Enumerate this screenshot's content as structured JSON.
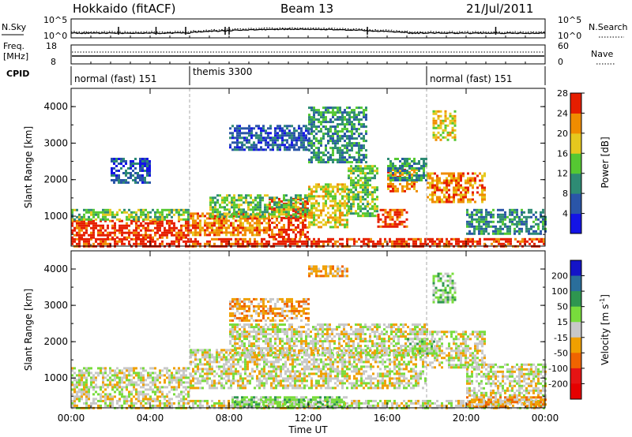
{
  "header": {
    "station": "Hokkaido (fitACF)",
    "beam": "Beam 13",
    "date": "21/Jul/2011"
  },
  "noise_panel": {
    "left_label": "N.Sky",
    "right_label": "N.Search",
    "y_ticks_left": [
      "10^5",
      "10^0"
    ],
    "y_ticks_right": [
      "10^5",
      "10^0"
    ]
  },
  "freq_panel": {
    "left_label_1": "Freq.",
    "left_label_2": "[MHz]",
    "right_label": "Nave",
    "y_ticks_left": [
      "18",
      "8"
    ],
    "y_ticks_right": [
      "60",
      "0"
    ]
  },
  "cpid_panel": {
    "label": "CPID",
    "segments": [
      {
        "name": "normal (fast) 151",
        "start_hour": 0,
        "end_hour": 6
      },
      {
        "name": "themis 3300",
        "start_hour": 6,
        "end_hour": 18
      },
      {
        "name": "normal (fast) 151",
        "start_hour": 18,
        "end_hour": 24
      }
    ]
  },
  "chart_data": [
    {
      "type": "heatmap",
      "title": "Power",
      "xlabel": "",
      "ylabel": "Slant Range [km]",
      "xlim_hours": [
        0,
        24
      ],
      "ylim": [
        180,
        4500
      ],
      "x_tick_labels": [
        "00:00",
        "04:00",
        "08:00",
        "12:00",
        "16:00",
        "20:00",
        "00:00"
      ],
      "y_tick_labels": [
        "1000",
        "2000",
        "3000",
        "4000"
      ],
      "colorbar": {
        "label": "Power [dB]",
        "ticks": [
          "4",
          "8",
          "12",
          "16",
          "20",
          "24",
          "28"
        ],
        "colors": [
          "#1414e6",
          "#2a55a8",
          "#2e8b74",
          "#55c832",
          "#e6c81e",
          "#f08c00",
          "#e61e00"
        ]
      },
      "regions": [
        {
          "t0": 0.0,
          "t1": 24.0,
          "r0": 200,
          "r1": 400,
          "level": 6
        },
        {
          "t0": 0.0,
          "t1": 6.0,
          "r0": 400,
          "r1": 900,
          "level": 6
        },
        {
          "t0": 0.0,
          "t1": 6.0,
          "r0": 900,
          "r1": 1200,
          "level": 3
        },
        {
          "t0": 6.0,
          "t1": 10.0,
          "r0": 500,
          "r1": 1100,
          "level": 5
        },
        {
          "t0": 10.0,
          "t1": 12.0,
          "r0": 400,
          "r1": 1500,
          "level": 6
        },
        {
          "t0": 7.0,
          "t1": 12.0,
          "r0": 1000,
          "r1": 1600,
          "level": 3
        },
        {
          "t0": 12.0,
          "t1": 14.0,
          "r0": 700,
          "r1": 1900,
          "level": 4
        },
        {
          "t0": 14.0,
          "t1": 15.5,
          "r0": 1000,
          "r1": 2400,
          "level": 3
        },
        {
          "t0": 15.5,
          "t1": 17.0,
          "r0": 700,
          "r1": 1200,
          "level": 6
        },
        {
          "t0": 16.0,
          "t1": 17.5,
          "r0": 1700,
          "r1": 2300,
          "level": 5
        },
        {
          "t0": 18.0,
          "t1": 21.0,
          "r0": 1400,
          "r1": 2200,
          "level": 5
        },
        {
          "t0": 20.0,
          "t1": 24.0,
          "r0": 500,
          "r1": 1200,
          "level": 2
        },
        {
          "t0": 18.3,
          "t1": 19.5,
          "r0": 3100,
          "r1": 3900,
          "level": 4
        },
        {
          "t0": 8.0,
          "t1": 12.0,
          "r0": 2800,
          "r1": 3500,
          "level": 1
        },
        {
          "t0": 12.0,
          "t1": 15.0,
          "r0": 2500,
          "r1": 4000,
          "level": 2
        },
        {
          "t0": 2.0,
          "t1": 4.0,
          "r0": 1900,
          "r1": 2600,
          "level": 1
        },
        {
          "t0": 16.0,
          "t1": 18.0,
          "r0": 2000,
          "r1": 2600,
          "level": 2
        }
      ]
    },
    {
      "type": "heatmap",
      "title": "Velocity",
      "xlabel": "Time UT",
      "ylabel": "Slant Range [km]",
      "xlim_hours": [
        0,
        24
      ],
      "ylim": [
        180,
        4500
      ],
      "x_tick_labels": [
        "00:00",
        "04:00",
        "08:00",
        "12:00",
        "16:00",
        "20:00",
        "00:00"
      ],
      "y_tick_labels": [
        "1000",
        "2000",
        "3000",
        "4000"
      ],
      "colorbar": {
        "label": "Velocity [m s^-1]",
        "ticks": [
          "200",
          "100",
          "50",
          "15",
          "-15",
          "-50",
          "-100",
          "-200"
        ],
        "colors": [
          "#1414c8",
          "#2a6e9b",
          "#2e9650",
          "#78dc3c",
          "#c8c8c8",
          "#f0a000",
          "#f06400",
          "#e61414",
          "#e60000"
        ]
      },
      "regions": [
        {
          "t0": 0.0,
          "t1": 24.0,
          "r0": 200,
          "r1": 400,
          "level": 4
        },
        {
          "t0": 0.0,
          "t1": 6.0,
          "r0": 400,
          "r1": 1300,
          "level": 4
        },
        {
          "t0": 6.0,
          "t1": 18.0,
          "r0": 700,
          "r1": 1800,
          "level": 4
        },
        {
          "t0": 8.0,
          "t1": 18.0,
          "r0": 1600,
          "r1": 2500,
          "level": 4
        },
        {
          "t0": 18.0,
          "t1": 21.0,
          "r0": 1300,
          "r1": 2300,
          "level": 4
        },
        {
          "t0": 20.0,
          "t1": 24.0,
          "r0": 500,
          "r1": 1400,
          "level": 4
        },
        {
          "t0": 8.0,
          "t1": 14.0,
          "r0": 200,
          "r1": 500,
          "level": 3
        },
        {
          "t0": 17.0,
          "t1": 18.5,
          "r0": 1700,
          "r1": 2100,
          "level": 3
        },
        {
          "t0": 18.3,
          "t1": 19.5,
          "r0": 3100,
          "r1": 3900,
          "level": 3
        },
        {
          "t0": 12.0,
          "t1": 14.0,
          "r0": 3800,
          "r1": 4100,
          "level": 5
        },
        {
          "t0": 8.0,
          "t1": 12.0,
          "r0": 2600,
          "r1": 3200,
          "level": 5
        },
        {
          "t0": 20.0,
          "t1": 24.0,
          "r0": 200,
          "r1": 500,
          "level": 5
        }
      ]
    }
  ]
}
